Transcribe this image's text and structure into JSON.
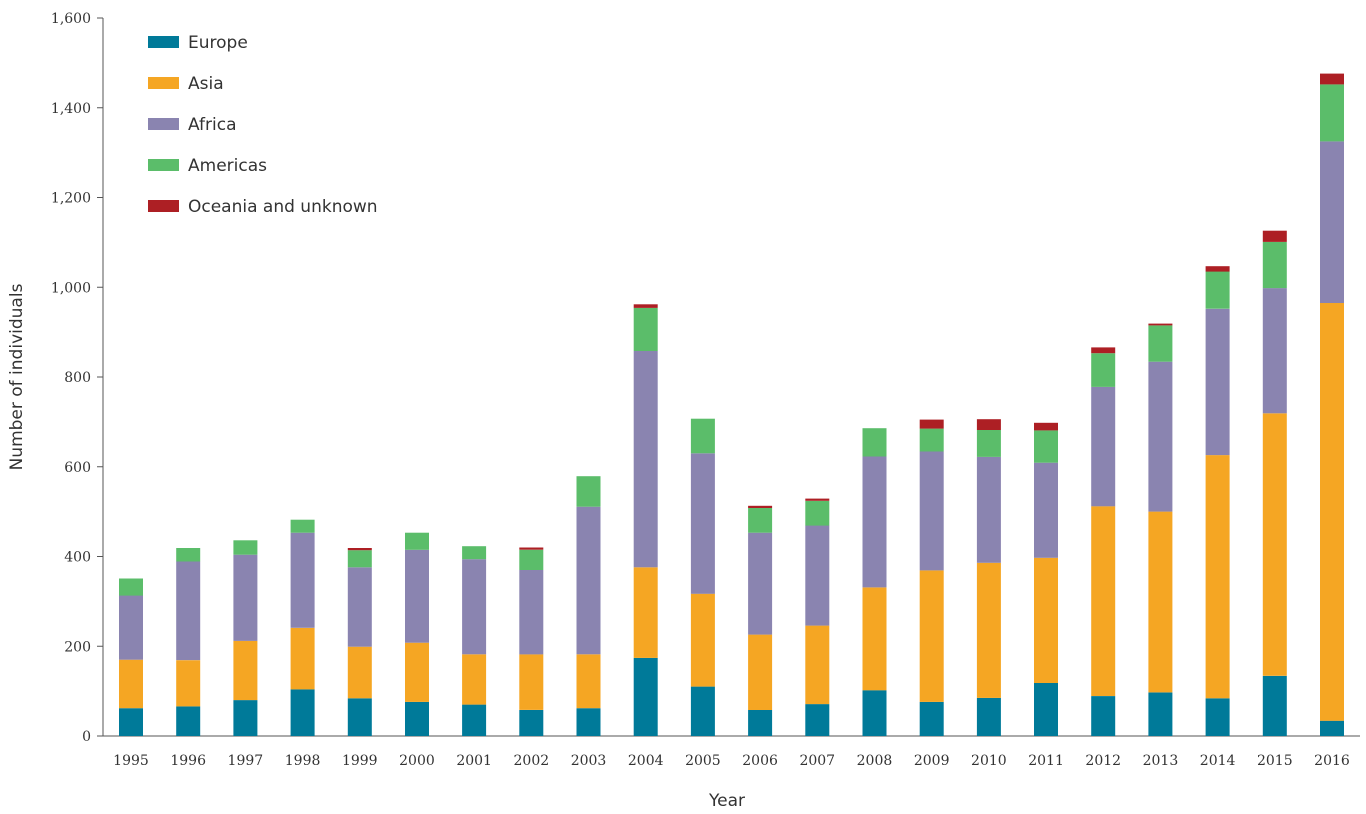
{
  "chart_data": {
    "type": "bar",
    "stacked": true,
    "title": "",
    "xlabel": "Year",
    "ylabel": "Number of individuals",
    "ylim": [
      0,
      1600
    ],
    "yticks": [
      "0",
      "200",
      "400",
      "600",
      "800",
      "1,000",
      "1,200",
      "1,400",
      "1,600"
    ],
    "grid": false,
    "legend_position": "top-left",
    "categories": [
      "1995",
      "1996",
      "1997",
      "1998",
      "1999",
      "2000",
      "2001",
      "2002",
      "2003",
      "2004",
      "2005",
      "2006",
      "2007",
      "2008",
      "2009",
      "2010",
      "2011",
      "2012",
      "2013",
      "2014",
      "2015",
      "2016"
    ],
    "series": [
      {
        "name": "Europe",
        "color": "#007a99",
        "values": [
          62,
          66,
          80,
          104,
          84,
          76,
          70,
          58,
          62,
          174,
          110,
          58,
          71,
          102,
          76,
          85,
          118,
          89,
          97,
          84,
          134,
          34
        ]
      },
      {
        "name": "Asia",
        "color": "#f5a623",
        "values": [
          108,
          103,
          132,
          137,
          115,
          132,
          112,
          124,
          120,
          202,
          207,
          168,
          175,
          229,
          293,
          301,
          279,
          423,
          403,
          542,
          585,
          931
        ]
      },
      {
        "name": "Africa",
        "color": "#8a84b0",
        "values": [
          143,
          220,
          192,
          212,
          177,
          207,
          212,
          188,
          329,
          482,
          313,
          227,
          223,
          292,
          265,
          236,
          212,
          266,
          334,
          326,
          279,
          360
        ]
      },
      {
        "name": "Americas",
        "color": "#5bbd6a",
        "values": [
          38,
          30,
          32,
          29,
          38,
          38,
          29,
          45,
          68,
          96,
          77,
          55,
          55,
          63,
          51,
          60,
          72,
          75,
          81,
          83,
          103,
          127
        ]
      },
      {
        "name": "Oceania and unknown",
        "color": "#ad1f24",
        "values": [
          0,
          0,
          0,
          0,
          5,
          0,
          0,
          5,
          0,
          8,
          0,
          5,
          5,
          0,
          20,
          24,
          17,
          13,
          4,
          12,
          25,
          24
        ]
      }
    ]
  }
}
